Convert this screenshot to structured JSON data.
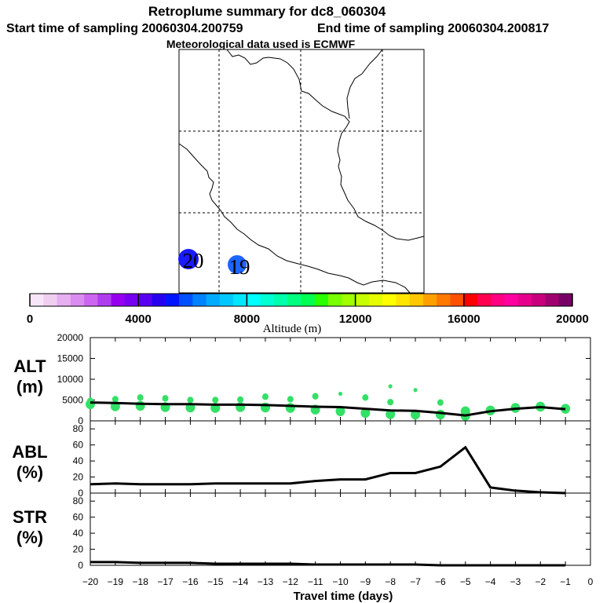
{
  "header": {
    "title": "Retroplume summary for dc8_060304",
    "start_label": "Start time of sampling 20060304.200759",
    "end_label": "End time of sampling 20060304.200817",
    "met_label": "Meteorological data used is ECMWF"
  },
  "map": {
    "markers": [
      {
        "label": "20",
        "color": "#1a1aff"
      },
      {
        "label": "19",
        "color": "#1e64ff"
      }
    ]
  },
  "colorbar": {
    "title": "Altitude (m)",
    "min": 0,
    "max": 20000,
    "tick_labels": [
      "0",
      "4000",
      "8000",
      "12000",
      "16000",
      "20000"
    ],
    "colors": [
      "#f7e6f7",
      "#f0cef0",
      "#e6aff0",
      "#db8cf0",
      "#cc66f0",
      "#b03cf0",
      "#9600f0",
      "#7800f0",
      "#5a00f0",
      "#2800f0",
      "#0014ff",
      "#0050ff",
      "#0082ff",
      "#00aaff",
      "#00c8ff",
      "#00e6ff",
      "#00ffff",
      "#00ffd2",
      "#00ffaa",
      "#00ff80",
      "#00ff50",
      "#28ff00",
      "#78ff00",
      "#a0ff00",
      "#c8ff00",
      "#e6ff00",
      "#ffff00",
      "#ffe600",
      "#ffc800",
      "#ffa000",
      "#ff7800",
      "#ff5000",
      "#ff0000",
      "#ff0050",
      "#ff0080",
      "#ff00a0",
      "#e6008c",
      "#c8007d",
      "#a0006e",
      "#780064"
    ]
  },
  "chart_data": [
    {
      "type": "scatter+line",
      "name": "ALT",
      "ylabel": "ALT (m)",
      "ylabel_lines": [
        "ALT",
        "(m)"
      ],
      "ylim": [
        0,
        20000
      ],
      "yticks": [
        0,
        5000,
        10000,
        15000,
        20000
      ],
      "ytick_labels": [
        "0",
        "5000",
        "10000",
        "15000",
        "20000"
      ],
      "point_color": "#33e066",
      "line_x": [
        -20,
        -19,
        -18,
        -17,
        -16,
        -15,
        -14,
        -13,
        -12,
        -11,
        -10,
        -9,
        -8,
        -7,
        -6,
        -5,
        -4,
        -3,
        -2,
        -1
      ],
      "line_y": [
        4400,
        4300,
        4100,
        4000,
        4000,
        3900,
        3900,
        3800,
        3600,
        3400,
        3300,
        2900,
        2500,
        2400,
        1900,
        1300,
        2300,
        2900,
        3300,
        2800
      ],
      "points": [
        {
          "x": -20,
          "y": 4800
        },
        {
          "x": -20,
          "y": 4000
        },
        {
          "x": -19,
          "y": 5200
        },
        {
          "x": -19,
          "y": 3500
        },
        {
          "x": -18,
          "y": 5600
        },
        {
          "x": -18,
          "y": 3600
        },
        {
          "x": -17,
          "y": 5400
        },
        {
          "x": -17,
          "y": 3300
        },
        {
          "x": -16,
          "y": 5000
        },
        {
          "x": -16,
          "y": 3200
        },
        {
          "x": -15,
          "y": 5000
        },
        {
          "x": -15,
          "y": 3100
        },
        {
          "x": -14,
          "y": 5100
        },
        {
          "x": -14,
          "y": 3300
        },
        {
          "x": -13,
          "y": 5800
        },
        {
          "x": -13,
          "y": 3200
        },
        {
          "x": -12,
          "y": 5200
        },
        {
          "x": -12,
          "y": 3100
        },
        {
          "x": -11,
          "y": 5900
        },
        {
          "x": -11,
          "y": 2700
        },
        {
          "x": -10,
          "y": 6500
        },
        {
          "x": -10,
          "y": 2300
        },
        {
          "x": -9,
          "y": 5600
        },
        {
          "x": -9,
          "y": 1900
        },
        {
          "x": -8,
          "y": 8300
        },
        {
          "x": -8,
          "y": 4500
        },
        {
          "x": -8,
          "y": 1600
        },
        {
          "x": -7,
          "y": 7400
        },
        {
          "x": -7,
          "y": 1500
        },
        {
          "x": -6,
          "y": 4400
        },
        {
          "x": -6,
          "y": 1500
        },
        {
          "x": -5,
          "y": 2300
        },
        {
          "x": -5,
          "y": 1200
        },
        {
          "x": -4,
          "y": 2500
        },
        {
          "x": -3,
          "y": 3100
        },
        {
          "x": -2,
          "y": 3400
        },
        {
          "x": -1,
          "y": 2900
        }
      ]
    },
    {
      "type": "line",
      "name": "ABL",
      "ylabel": "ABL (%)",
      "ylabel_lines": [
        "ABL",
        "(%)"
      ],
      "ylim": [
        0,
        90
      ],
      "yticks": [
        0,
        20,
        40,
        60,
        80
      ],
      "ytick_labels": [
        "0",
        "20",
        "40",
        "60",
        "80"
      ],
      "x": [
        -20,
        -19,
        -18,
        -17,
        -16,
        -15,
        -14,
        -13,
        -12,
        -11,
        -10,
        -9,
        -8,
        -7,
        -6,
        -5,
        -4,
        -3,
        -2,
        -1
      ],
      "y": [
        11,
        12,
        11,
        11,
        11,
        12,
        12,
        12,
        12,
        15,
        17,
        17,
        25,
        25,
        33,
        57,
        7,
        3,
        1,
        0
      ]
    },
    {
      "type": "line",
      "name": "STR",
      "ylabel": "STR (%)",
      "ylabel_lines": [
        "STR",
        "(%)"
      ],
      "ylim": [
        0,
        90
      ],
      "yticks": [
        0,
        20,
        40,
        60,
        80
      ],
      "ytick_labels": [
        "0",
        "20",
        "40",
        "60",
        "80"
      ],
      "x": [
        -20,
        -19,
        -18,
        -17,
        -16,
        -15,
        -14,
        -13,
        -12,
        -11,
        -10,
        -9,
        -8,
        -7,
        -6,
        -5,
        -4,
        -3,
        -2,
        -1
      ],
      "y": [
        4,
        4,
        3,
        3,
        3,
        2,
        2,
        2,
        2,
        1,
        1,
        1,
        1,
        1,
        0,
        0,
        0,
        0,
        0,
        0
      ]
    }
  ],
  "xaxis": {
    "label": "Travel time (days)",
    "range": [
      -20,
      0
    ],
    "tick_labels": [
      "−20",
      "−19",
      "−18",
      "−17",
      "−16",
      "−15",
      "−14",
      "−13",
      "−12",
      "−11",
      "−10",
      "−9",
      "−8",
      "−7",
      "−6",
      "−5",
      "−4",
      "−3",
      "−2",
      "−1",
      "0"
    ]
  }
}
